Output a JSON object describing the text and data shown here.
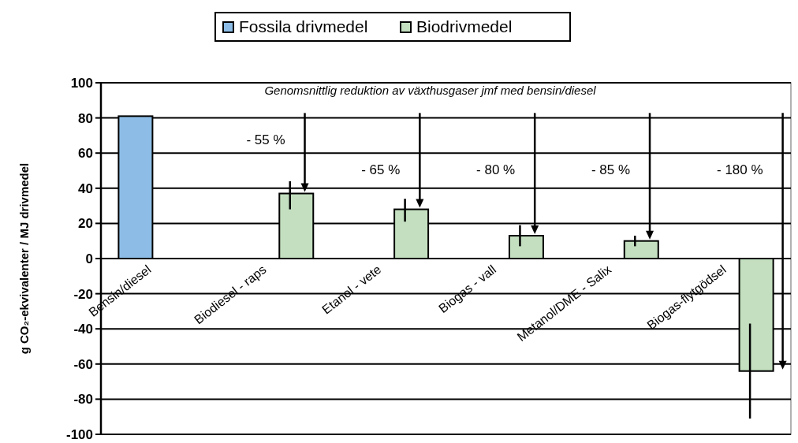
{
  "chart_data": {
    "type": "bar",
    "categories": [
      "Bensin/diesel",
      "Biodiesel - raps",
      "Etanol - vete",
      "Biogas - vall",
      "Metanol/DME - Salix",
      "Biogas-flytgödsel"
    ],
    "series": [
      {
        "name": "Fossila drivmedel",
        "color": "#8dbde6",
        "values": [
          81,
          null,
          null,
          null,
          null,
          null
        ]
      },
      {
        "name": "Biodrivmedel",
        "color": "#c3dfbf",
        "values": [
          null,
          37,
          28,
          13,
          10,
          -64
        ],
        "errors": [
          null,
          [
            28,
            44
          ],
          [
            21,
            34
          ],
          [
            7,
            19
          ],
          [
            7,
            13
          ],
          [
            -91,
            -37
          ]
        ]
      }
    ],
    "ylabel": "g CO₂-ekvivalenter / MJ drivmedel",
    "ylim": [
      -100,
      100
    ],
    "yticks": [
      -100,
      -80,
      -60,
      -40,
      -20,
      0,
      20,
      40,
      60,
      80,
      100
    ],
    "grid": "y",
    "legend": "top",
    "annotations": [
      "Genomsnittlig reduktion av växthusgaser jmf med bensin/diesel",
      "- 55 %",
      "- 65 %",
      "- 80 %",
      "- 85 %",
      "- 180 %"
    ]
  }
}
